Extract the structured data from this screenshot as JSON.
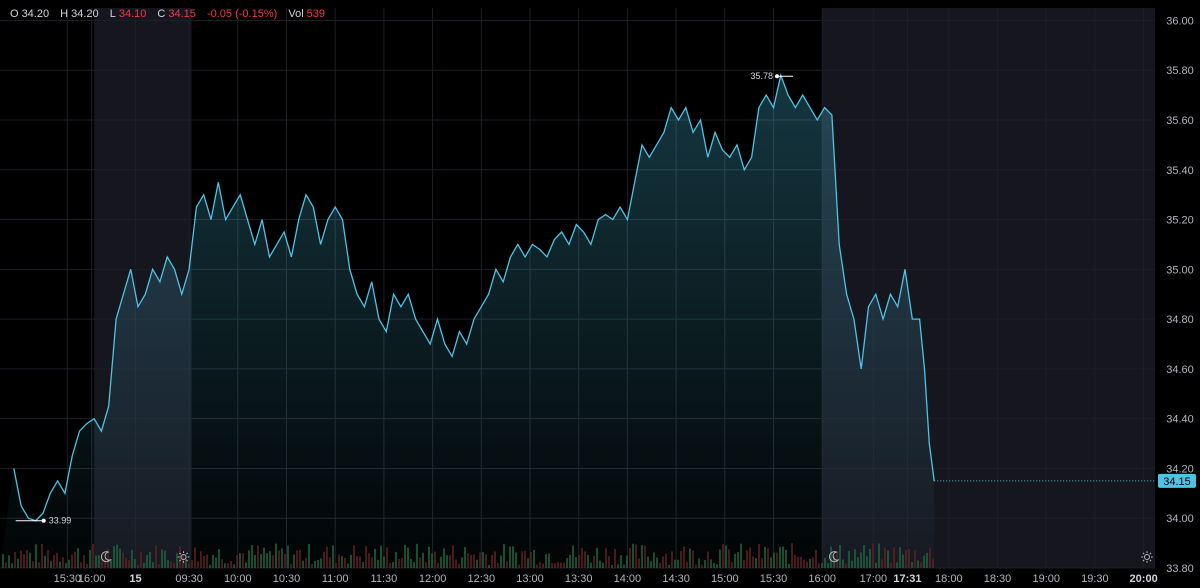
{
  "ohlc": {
    "o_label": "O",
    "o_value": "34.20",
    "h_label": "H",
    "h_value": "34.20",
    "l_label": "L",
    "l_value": "34.10",
    "c_label": "C",
    "c_value": "34.15",
    "change": "-0.05 (-0.15%)",
    "vol_label": "Vol",
    "vol_value": "539"
  },
  "colors": {
    "line": "#4dc3e6",
    "extended_bg": "#16161e",
    "up_red": "#f23645",
    "volume_up": "#1b5e3a",
    "volume_down": "#5e1b1b"
  },
  "chart_data": {
    "type": "area",
    "title": "",
    "xlabel": "",
    "ylabel": "",
    "ylim": [
      33.8,
      36.05
    ],
    "y_ticks": [
      "36.00",
      "35.80",
      "35.60",
      "35.40",
      "35.20",
      "35.00",
      "34.80",
      "34.60",
      "34.40",
      "34.20",
      "34.00",
      "33.80"
    ],
    "x_ticks": [
      {
        "label": "15:30",
        "t": 0.5
      },
      {
        "label": "16:00",
        "t": 1
      },
      {
        "label": "15",
        "t": 1.9,
        "bold": true
      },
      {
        "label": "09:30",
        "t": 3
      },
      {
        "label": "10:00",
        "t": 4
      },
      {
        "label": "10:30",
        "t": 5
      },
      {
        "label": "11:00",
        "t": 6
      },
      {
        "label": "11:30",
        "t": 7
      },
      {
        "label": "12:00",
        "t": 8
      },
      {
        "label": "12:30",
        "t": 9
      },
      {
        "label": "13:00",
        "t": 10
      },
      {
        "label": "13:30",
        "t": 11
      },
      {
        "label": "14:00",
        "t": 12
      },
      {
        "label": "14:30",
        "t": 13
      },
      {
        "label": "15:00",
        "t": 14
      },
      {
        "label": "15:30",
        "t": 15
      },
      {
        "label": "16:00",
        "t": 16
      },
      {
        "label": "17:00",
        "t": 17.05
      },
      {
        "label": "17:31",
        "t": 17.75,
        "bold": true
      },
      {
        "label": "18:00",
        "t": 18.6
      },
      {
        "label": "18:30",
        "t": 19.6
      },
      {
        "label": "19:00",
        "t": 20.6
      },
      {
        "label": "19:30",
        "t": 21.6
      },
      {
        "label": "20:00",
        "t": 22.6,
        "bold": true
      }
    ],
    "sessions": [
      {
        "type": "extended",
        "t_start": 1.05,
        "t_end": 3.05,
        "icon_start": "moon",
        "icon_end": "sun"
      },
      {
        "type": "extended",
        "t_start": 16.0,
        "t_end": 22.95,
        "icon_start": "moon",
        "icon_end": "sun"
      }
    ],
    "series": [
      {
        "points": [
          [
            -0.6,
            34.2
          ],
          [
            -0.45,
            34.05
          ],
          [
            -0.3,
            34.0
          ],
          [
            -0.15,
            33.99
          ],
          [
            0.0,
            34.02
          ],
          [
            0.15,
            34.1
          ],
          [
            0.3,
            34.15
          ],
          [
            0.45,
            34.1
          ],
          [
            0.6,
            34.25
          ],
          [
            0.75,
            34.35
          ],
          [
            0.9,
            34.38
          ],
          [
            1.05,
            34.4
          ],
          [
            1.2,
            34.35
          ],
          [
            1.35,
            34.45
          ],
          [
            1.5,
            34.8
          ],
          [
            1.65,
            34.9
          ],
          [
            1.8,
            35.0
          ],
          [
            1.95,
            34.85
          ],
          [
            2.1,
            34.9
          ],
          [
            2.25,
            35.0
          ],
          [
            2.4,
            34.95
          ],
          [
            2.55,
            35.05
          ],
          [
            2.7,
            35.0
          ],
          [
            2.85,
            34.9
          ],
          [
            3.0,
            35.0
          ],
          [
            3.15,
            35.25
          ],
          [
            3.3,
            35.3
          ],
          [
            3.45,
            35.2
          ],
          [
            3.6,
            35.35
          ],
          [
            3.75,
            35.2
          ],
          [
            3.9,
            35.25
          ],
          [
            4.05,
            35.3
          ],
          [
            4.2,
            35.2
          ],
          [
            4.35,
            35.1
          ],
          [
            4.5,
            35.2
          ],
          [
            4.65,
            35.05
          ],
          [
            4.8,
            35.1
          ],
          [
            4.95,
            35.15
          ],
          [
            5.1,
            35.05
          ],
          [
            5.25,
            35.2
          ],
          [
            5.4,
            35.3
          ],
          [
            5.55,
            35.25
          ],
          [
            5.7,
            35.1
          ],
          [
            5.85,
            35.2
          ],
          [
            6.0,
            35.25
          ],
          [
            6.15,
            35.2
          ],
          [
            6.3,
            35.0
          ],
          [
            6.45,
            34.9
          ],
          [
            6.6,
            34.85
          ],
          [
            6.75,
            34.95
          ],
          [
            6.9,
            34.8
          ],
          [
            7.05,
            34.75
          ],
          [
            7.2,
            34.9
          ],
          [
            7.35,
            34.85
          ],
          [
            7.5,
            34.9
          ],
          [
            7.65,
            34.8
          ],
          [
            7.8,
            34.75
          ],
          [
            7.95,
            34.7
          ],
          [
            8.1,
            34.8
          ],
          [
            8.25,
            34.7
          ],
          [
            8.4,
            34.65
          ],
          [
            8.55,
            34.75
          ],
          [
            8.7,
            34.7
          ],
          [
            8.85,
            34.8
          ],
          [
            9.0,
            34.85
          ],
          [
            9.15,
            34.9
          ],
          [
            9.3,
            35.0
          ],
          [
            9.45,
            34.95
          ],
          [
            9.6,
            35.05
          ],
          [
            9.75,
            35.1
          ],
          [
            9.9,
            35.05
          ],
          [
            10.05,
            35.1
          ],
          [
            10.2,
            35.08
          ],
          [
            10.35,
            35.05
          ],
          [
            10.5,
            35.12
          ],
          [
            10.65,
            35.15
          ],
          [
            10.8,
            35.1
          ],
          [
            10.95,
            35.18
          ],
          [
            11.1,
            35.15
          ],
          [
            11.25,
            35.1
          ],
          [
            11.4,
            35.2
          ],
          [
            11.55,
            35.22
          ],
          [
            11.7,
            35.2
          ],
          [
            11.85,
            35.25
          ],
          [
            12.0,
            35.2
          ],
          [
            12.15,
            35.35
          ],
          [
            12.3,
            35.5
          ],
          [
            12.45,
            35.45
          ],
          [
            12.6,
            35.5
          ],
          [
            12.75,
            35.55
          ],
          [
            12.9,
            35.65
          ],
          [
            13.05,
            35.6
          ],
          [
            13.2,
            35.65
          ],
          [
            13.35,
            35.55
          ],
          [
            13.5,
            35.6
          ],
          [
            13.65,
            35.45
          ],
          [
            13.8,
            35.55
          ],
          [
            13.95,
            35.48
          ],
          [
            14.1,
            35.45
          ],
          [
            14.25,
            35.5
          ],
          [
            14.4,
            35.4
          ],
          [
            14.55,
            35.45
          ],
          [
            14.7,
            35.65
          ],
          [
            14.85,
            35.7
          ],
          [
            15.0,
            35.65
          ],
          [
            15.15,
            35.78
          ],
          [
            15.3,
            35.7
          ],
          [
            15.45,
            35.65
          ],
          [
            15.6,
            35.7
          ],
          [
            15.75,
            35.65
          ],
          [
            15.9,
            35.6
          ],
          [
            16.05,
            35.65
          ],
          [
            16.2,
            35.62
          ],
          [
            16.35,
            35.1
          ],
          [
            16.5,
            34.9
          ],
          [
            16.65,
            34.8
          ],
          [
            16.8,
            34.6
          ],
          [
            16.95,
            34.85
          ],
          [
            17.1,
            34.9
          ],
          [
            17.25,
            34.8
          ],
          [
            17.4,
            34.9
          ],
          [
            17.55,
            34.85
          ],
          [
            17.7,
            35.0
          ],
          [
            17.85,
            34.8
          ],
          [
            18.0,
            34.8
          ],
          [
            18.1,
            34.6
          ],
          [
            18.2,
            34.3
          ],
          [
            18.3,
            34.15
          ]
        ]
      }
    ],
    "annotations": {
      "high": {
        "value": "35.78",
        "t": 15.4
      },
      "low": {
        "value": "33.99",
        "t": -0.15
      }
    },
    "last_price": {
      "value": "34.15",
      "t_start": 18.3
    }
  }
}
